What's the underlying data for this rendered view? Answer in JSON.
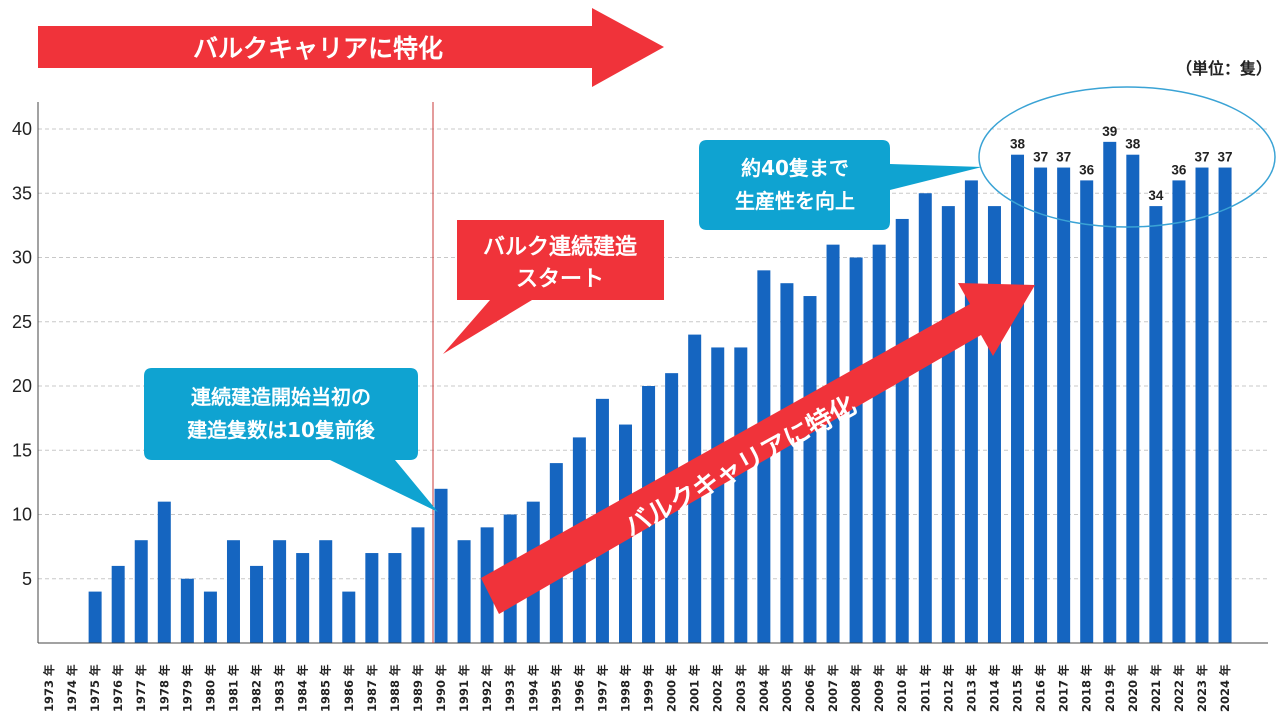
{
  "unit_label": "（単位：隻）",
  "banner_label": "バルクキャリアに特化",
  "diagonal_arrow_label": "バルクキャリアに特化",
  "callouts": {
    "start": [
      "バルク連続建造",
      "スタート"
    ],
    "initial": [
      "連続建造開始当初の",
      "建造隻数は10隻前後"
    ],
    "recent": [
      "約40隻まで",
      "生産性を向上"
    ]
  },
  "colors": {
    "bar": "#1565c0",
    "red": "#f0333a",
    "cyan_callout": "#0fa3d1",
    "ellipse": "#3aa3d5",
    "grid": "#c8c8c8",
    "marker_line": "#c83a3a"
  },
  "chart_data": {
    "type": "bar",
    "categories": [
      "1973 年",
      "1974 年",
      "1975 年",
      "1976 年",
      "1977 年",
      "1978 年",
      "1979 年",
      "1980 年",
      "1981 年",
      "1982 年",
      "1983 年",
      "1984 年",
      "1985 年",
      "1986 年",
      "1987 年",
      "1988 年",
      "1989 年",
      "1990 年",
      "1991 年",
      "1992 年",
      "1993 年",
      "1994 年",
      "1995 年",
      "1996 年",
      "1997 年",
      "1998 年",
      "1999 年",
      "2000 年",
      "2001 年",
      "2002 年",
      "2003 年",
      "2004 年",
      "2005 年",
      "2006 年",
      "2007 年",
      "2008 年",
      "2009 年",
      "2010 年",
      "2011 年",
      "2012 年",
      "2013 年",
      "2014 年",
      "2015 年",
      "2016 年",
      "2017 年",
      "2018 年",
      "2019 年",
      "2020 年",
      "2021 年",
      "2022 年",
      "2023 年",
      "2024 年"
    ],
    "values": [
      0,
      0,
      4,
      6,
      8,
      11,
      5,
      4,
      8,
      6,
      8,
      7,
      8,
      4,
      7,
      7,
      9,
      12,
      8,
      9,
      10,
      11,
      14,
      16,
      19,
      17,
      20,
      21,
      24,
      23,
      23,
      29,
      28,
      27,
      31,
      30,
      31,
      33,
      35,
      34,
      36,
      34,
      38,
      37,
      37,
      36,
      39,
      38,
      34,
      36,
      37,
      37
    ],
    "data_labels": [
      {
        "index": 42,
        "text": "38"
      },
      {
        "index": 43,
        "text": "37"
      },
      {
        "index": 44,
        "text": "37"
      },
      {
        "index": 45,
        "text": "36"
      },
      {
        "index": 46,
        "text": "39"
      },
      {
        "index": 47,
        "text": "38"
      },
      {
        "index": 48,
        "text": "34"
      },
      {
        "index": 49,
        "text": "36"
      },
      {
        "index": 50,
        "text": "37"
      },
      {
        "index": 51,
        "text": "37"
      }
    ],
    "yticks": [
      "5",
      "10",
      "15",
      "20",
      "25",
      "30",
      "35",
      "40"
    ],
    "ylim": [
      0,
      42
    ],
    "grid": true,
    "legend": "none",
    "marker_after_category": "1989 年"
  }
}
